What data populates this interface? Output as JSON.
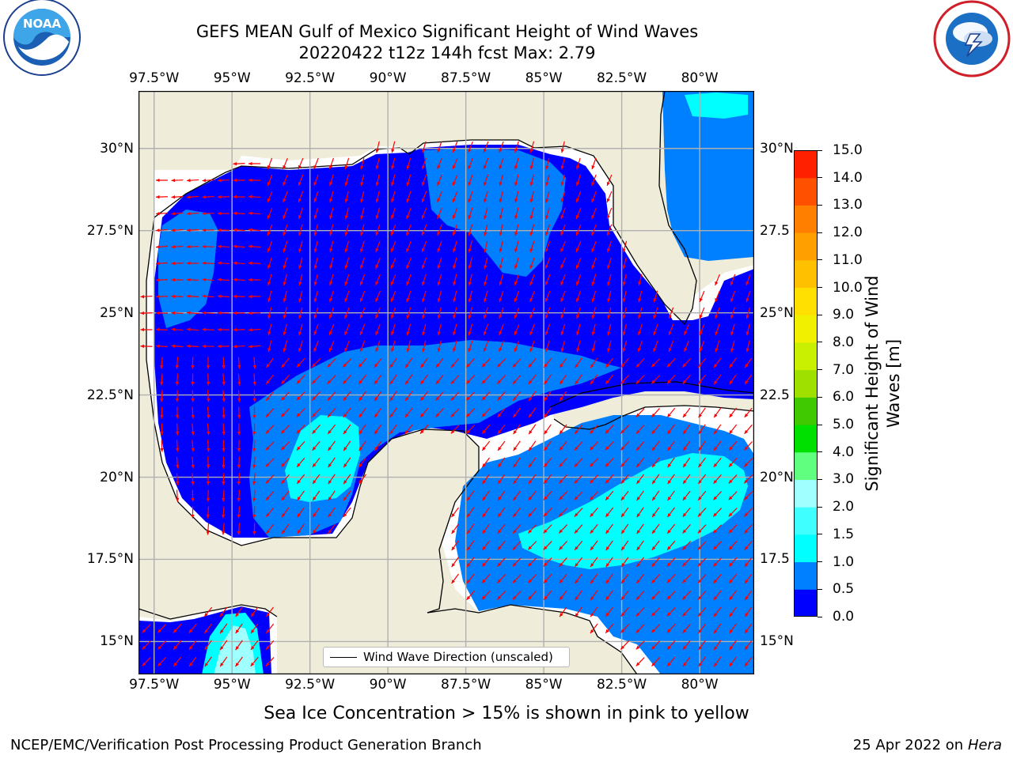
{
  "header": {
    "title_line1": "GEFS MEAN Gulf of Mexico Significant Height of Wind Waves",
    "title_line2": "20220422 t12z 144h fcst   Max: 2.79"
  },
  "logos": {
    "left": {
      "name": "noaa-logo",
      "text": "NOAA",
      "ring_text": "NATIONAL OCEANIC AND ATMOSPHERIC ADMINISTRATION · U.S. DEPARTMENT OF COMMERCE"
    },
    "right": {
      "name": "nws-logo",
      "ring_text": "NATIONAL WEATHER SERVICE"
    }
  },
  "map": {
    "lon_labels": [
      "97.5°W",
      "95°W",
      "92.5°W",
      "90°W",
      "87.5°W",
      "85°W",
      "82.5°W",
      "80°W"
    ],
    "lon_values": [
      -97.5,
      -95,
      -92.5,
      -90,
      -87.5,
      -85,
      -82.5,
      -80
    ],
    "lat_labels": [
      "30°N",
      "27.5°N",
      "25°N",
      "22.5°N",
      "20°N",
      "17.5°N",
      "15°N"
    ],
    "lat_values": [
      30,
      27.5,
      25,
      22.5,
      20,
      17.5,
      15
    ],
    "right_lat_labels": [
      "30°N",
      "27.5",
      "25°N",
      "22.5",
      "20°N",
      "17.5",
      "15°N"
    ],
    "lon_range": [
      -98,
      -78.25
    ],
    "lat_range": [
      14,
      31.75
    ],
    "legend_label": "Wind Wave Direction (unscaled)",
    "land_color": "#efedda",
    "ocean_missing_color": "#ffffff",
    "arrow_color": "#ff0000",
    "grid": true
  },
  "colorbar": {
    "title": "Significant Height of Wind Waves [m]",
    "title_line1": "Significant Height of Wind",
    "title_line2": "Waves [m]",
    "labels": [
      "15.0",
      "14.0",
      "13.0",
      "12.0",
      "11.0",
      "10.0",
      "9.0",
      "8.0",
      "7.0",
      "6.0",
      "5.0",
      "4.0",
      "3.0",
      "2.0",
      "1.5",
      "1.0",
      "0.5",
      "0.0"
    ],
    "levels": [
      0.0,
      0.5,
      1.0,
      1.5,
      2.0,
      3.0,
      4.0,
      5.0,
      6.0,
      7.0,
      8.0,
      9.0,
      10.0,
      11.0,
      12.0,
      13.0,
      14.0,
      15.0
    ],
    "colors": [
      "#0000ff",
      "#0080ff",
      "#00ffff",
      "#40ffff",
      "#a0ffff",
      "#60ff80",
      "#00e000",
      "#40c800",
      "#a0e000",
      "#c8f000",
      "#f0f000",
      "#ffe000",
      "#ffc000",
      "#ffa000",
      "#ff8000",
      "#ff5000",
      "#ff2000"
    ]
  },
  "chart_data": {
    "type": "heatmap",
    "title": "GEFS MEAN Gulf of Mexico Significant Height of Wind Waves",
    "subtitle": "20220422 t12z 144h fcst   Max: 2.79",
    "variable": "Significant Height of Wind Waves [m]",
    "max": 2.79,
    "regions": [
      {
        "area": "Northern and western Gulf",
        "value_range": "0.0-0.5"
      },
      {
        "area": "Central Gulf band",
        "value_range": "0.5-1.0"
      },
      {
        "area": "Bay of Campeche (center)",
        "value_range": "1.0-1.5"
      },
      {
        "area": "NW Caribbean",
        "value_range": "1.0-1.5"
      },
      {
        "area": "Gulf of Tehuantepec (Pacific)",
        "value_range": "2.0-3.0"
      }
    ]
  },
  "footer": {
    "ice_note": "Sea Ice Concentration > 15% is shown in pink to yellow",
    "left": "NCEP/EMC/Verification Post Processing Product Generation Branch",
    "right_date": "25 Apr 2022 on ",
    "right_machine": "Hera"
  }
}
